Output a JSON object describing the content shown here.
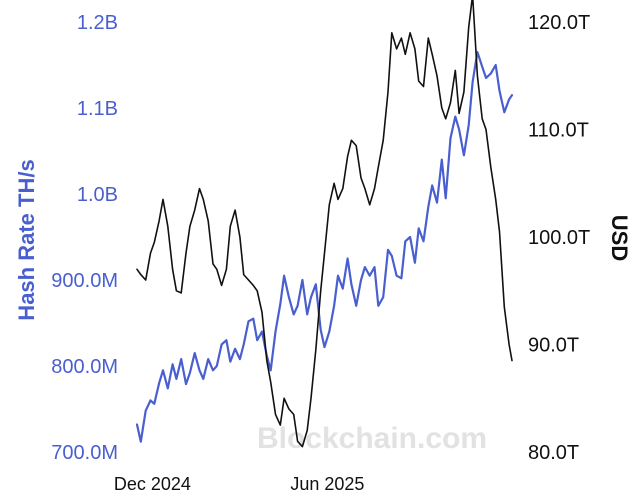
{
  "chart_data": {
    "type": "line",
    "watermark": "Blockchain.com",
    "x_ticks": [
      {
        "label": "Dec 2024",
        "date": "2024-12-01"
      },
      {
        "label": "Jun 2025",
        "date": "2025-06-01"
      }
    ],
    "y_left": {
      "label": "Hash Rate TH/s",
      "range": [
        700000000,
        1200000000
      ],
      "ticks": [
        {
          "value": 700000000,
          "label": "700.0M"
        },
        {
          "value": 800000000,
          "label": "800.0M"
        },
        {
          "value": 900000000,
          "label": "900.0M"
        },
        {
          "value": 1000000000,
          "label": "1.0B"
        },
        {
          "value": 1100000000,
          "label": "1.1B"
        },
        {
          "value": 1200000000,
          "label": "1.2B"
        }
      ]
    },
    "y_right": {
      "label": "USD",
      "range": [
        80000000000000,
        120000000000000
      ],
      "ticks": [
        {
          "value": 80000000000000,
          "label": "80.0T"
        },
        {
          "value": 90000000000000,
          "label": "90.0T"
        },
        {
          "value": 100000000000000,
          "label": "100.0T"
        },
        {
          "value": 110000000000000,
          "label": "110.0T"
        },
        {
          "value": 120000000000000,
          "label": "120.0T"
        }
      ]
    },
    "series": [
      {
        "color": "#4a5fcf",
        "axis": "left",
        "points": [
          [
            "2024-11-15",
            732000000
          ],
          [
            "2024-11-19",
            712000000
          ],
          [
            "2024-11-24",
            748000000
          ],
          [
            "2024-11-29",
            760000000
          ],
          [
            "2024-12-03",
            756000000
          ],
          [
            "2024-12-08",
            780000000
          ],
          [
            "2024-12-12",
            795000000
          ],
          [
            "2024-12-17",
            774000000
          ],
          [
            "2024-12-22",
            802000000
          ],
          [
            "2024-12-26",
            785000000
          ],
          [
            "2024-12-31",
            808000000
          ],
          [
            "2025-01-05",
            779000000
          ],
          [
            "2025-01-09",
            792000000
          ],
          [
            "2025-01-14",
            815000000
          ],
          [
            "2025-01-19",
            795000000
          ],
          [
            "2025-01-23",
            785000000
          ],
          [
            "2025-01-28",
            808000000
          ],
          [
            "2025-02-02",
            795000000
          ],
          [
            "2025-02-06",
            800000000
          ],
          [
            "2025-02-11",
            825000000
          ],
          [
            "2025-02-16",
            830000000
          ],
          [
            "2025-02-20",
            805000000
          ],
          [
            "2025-02-25",
            820000000
          ],
          [
            "2025-03-02",
            808000000
          ],
          [
            "2025-03-06",
            825000000
          ],
          [
            "2025-03-11",
            852000000
          ],
          [
            "2025-03-16",
            855000000
          ],
          [
            "2025-03-20",
            830000000
          ],
          [
            "2025-03-25",
            840000000
          ],
          [
            "2025-03-30",
            812000000
          ],
          [
            "2025-04-03",
            795000000
          ],
          [
            "2025-04-08",
            840000000
          ],
          [
            "2025-04-13",
            872000000
          ],
          [
            "2025-04-17",
            905000000
          ],
          [
            "2025-04-22",
            880000000
          ],
          [
            "2025-04-27",
            860000000
          ],
          [
            "2025-05-01",
            870000000
          ],
          [
            "2025-05-06",
            900000000
          ],
          [
            "2025-05-11",
            860000000
          ],
          [
            "2025-05-15",
            880000000
          ],
          [
            "2025-05-20",
            895000000
          ],
          [
            "2025-05-25",
            842000000
          ],
          [
            "2025-05-29",
            822000000
          ],
          [
            "2025-06-03",
            840000000
          ],
          [
            "2025-06-08",
            870000000
          ],
          [
            "2025-06-12",
            905000000
          ],
          [
            "2025-06-17",
            890000000
          ],
          [
            "2025-06-22",
            925000000
          ],
          [
            "2025-06-26",
            895000000
          ],
          [
            "2025-07-01",
            870000000
          ],
          [
            "2025-07-06",
            900000000
          ],
          [
            "2025-07-10",
            915000000
          ],
          [
            "2025-07-15",
            905000000
          ],
          [
            "2025-07-20",
            915000000
          ],
          [
            "2025-07-24",
            870000000
          ],
          [
            "2025-07-29",
            880000000
          ],
          [
            "2025-08-03",
            935000000
          ],
          [
            "2025-08-07",
            928000000
          ],
          [
            "2025-08-12",
            905000000
          ],
          [
            "2025-08-17",
            902000000
          ],
          [
            "2025-08-21",
            945000000
          ],
          [
            "2025-08-26",
            950000000
          ],
          [
            "2025-08-31",
            920000000
          ],
          [
            "2025-09-04",
            960000000
          ],
          [
            "2025-09-09",
            945000000
          ],
          [
            "2025-09-14",
            985000000
          ],
          [
            "2025-09-18",
            1010000000
          ],
          [
            "2025-09-23",
            990000000
          ],
          [
            "2025-09-28",
            1040000000
          ],
          [
            "2025-10-02",
            995000000
          ],
          [
            "2025-10-07",
            1065000000
          ],
          [
            "2025-10-12",
            1090000000
          ],
          [
            "2025-10-16",
            1075000000
          ],
          [
            "2025-10-21",
            1045000000
          ],
          [
            "2025-10-26",
            1080000000
          ],
          [
            "2025-10-30",
            1130000000
          ],
          [
            "2025-11-04",
            1165000000
          ],
          [
            "2025-11-09",
            1148000000
          ],
          [
            "2025-11-13",
            1135000000
          ],
          [
            "2025-11-18",
            1140000000
          ],
          [
            "2025-11-23",
            1150000000
          ],
          [
            "2025-11-27",
            1120000000
          ],
          [
            "2025-12-02",
            1095000000
          ],
          [
            "2025-12-07",
            1110000000
          ],
          [
            "2025-12-10",
            1115000000
          ]
        ]
      },
      {
        "color": "#111111",
        "axis": "right",
        "points": [
          [
            "2024-11-15",
            97000000000000
          ],
          [
            "2024-11-19",
            96500000000000
          ],
          [
            "2024-11-24",
            96000000000000
          ],
          [
            "2024-11-29",
            98500000000000
          ],
          [
            "2024-12-03",
            99500000000000
          ],
          [
            "2024-12-08",
            101500000000000
          ],
          [
            "2024-12-12",
            103500000000000
          ],
          [
            "2024-12-17",
            101000000000000
          ],
          [
            "2024-12-22",
            97000000000000
          ],
          [
            "2024-12-26",
            95000000000000
          ],
          [
            "2024-12-31",
            94800000000000
          ],
          [
            "2025-01-05",
            98500000000000
          ],
          [
            "2025-01-09",
            101000000000000
          ],
          [
            "2025-01-14",
            102500000000000
          ],
          [
            "2025-01-19",
            104500000000000
          ],
          [
            "2025-01-23",
            103500000000000
          ],
          [
            "2025-01-28",
            101500000000000
          ],
          [
            "2025-02-02",
            97500000000000
          ],
          [
            "2025-02-06",
            97000000000000
          ],
          [
            "2025-02-11",
            95500000000000
          ],
          [
            "2025-02-16",
            97000000000000
          ],
          [
            "2025-02-20",
            101000000000000
          ],
          [
            "2025-02-25",
            102500000000000
          ],
          [
            "2025-03-02",
            100000000000000
          ],
          [
            "2025-03-06",
            96500000000000
          ],
          [
            "2025-03-11",
            96000000000000
          ],
          [
            "2025-03-16",
            95500000000000
          ],
          [
            "2025-03-20",
            95000000000000
          ],
          [
            "2025-03-25",
            93000000000000
          ],
          [
            "2025-03-30",
            88500000000000
          ],
          [
            "2025-04-03",
            86500000000000
          ],
          [
            "2025-04-08",
            83500000000000
          ],
          [
            "2025-04-13",
            82500000000000
          ],
          [
            "2025-04-17",
            85000000000000
          ],
          [
            "2025-04-22",
            84000000000000
          ],
          [
            "2025-04-27",
            83500000000000
          ],
          [
            "2025-05-01",
            81000000000000
          ],
          [
            "2025-05-06",
            80500000000000
          ],
          [
            "2025-05-11",
            82000000000000
          ],
          [
            "2025-05-15",
            85000000000000
          ],
          [
            "2025-05-20",
            89500000000000
          ],
          [
            "2025-05-25",
            95000000000000
          ],
          [
            "2025-05-29",
            98500000000000
          ],
          [
            "2025-06-03",
            103000000000000
          ],
          [
            "2025-06-08",
            105000000000000
          ],
          [
            "2025-06-12",
            103500000000000
          ],
          [
            "2025-06-17",
            104500000000000
          ],
          [
            "2025-06-22",
            107500000000000
          ],
          [
            "2025-06-26",
            109000000000000
          ],
          [
            "2025-07-01",
            108500000000000
          ],
          [
            "2025-07-06",
            105500000000000
          ],
          [
            "2025-07-10",
            104500000000000
          ],
          [
            "2025-07-15",
            103000000000000
          ],
          [
            "2025-07-20",
            104500000000000
          ],
          [
            "2025-07-24",
            106500000000000
          ],
          [
            "2025-07-29",
            109000000000000
          ],
          [
            "2025-08-03",
            113500000000000
          ],
          [
            "2025-08-07",
            119000000000000
          ],
          [
            "2025-08-12",
            117500000000000
          ],
          [
            "2025-08-17",
            118500000000000
          ],
          [
            "2025-08-21",
            117000000000000
          ],
          [
            "2025-08-26",
            119000000000000
          ],
          [
            "2025-08-31",
            117500000000000
          ],
          [
            "2025-09-04",
            114500000000000
          ],
          [
            "2025-09-09",
            114000000000000
          ],
          [
            "2025-09-14",
            118500000000000
          ],
          [
            "2025-09-18",
            117000000000000
          ],
          [
            "2025-09-23",
            115000000000000
          ],
          [
            "2025-09-28",
            112000000000000
          ],
          [
            "2025-10-02",
            111000000000000
          ],
          [
            "2025-10-07",
            112500000000000
          ],
          [
            "2025-10-12",
            115500000000000
          ],
          [
            "2025-10-16",
            111500000000000
          ],
          [
            "2025-10-21",
            113500000000000
          ],
          [
            "2025-10-26",
            119500000000000
          ],
          [
            "2025-10-30",
            122500000000000
          ],
          [
            "2025-11-04",
            115000000000000
          ],
          [
            "2025-11-09",
            111000000000000
          ],
          [
            "2025-11-13",
            110000000000000
          ],
          [
            "2025-11-18",
            106500000000000
          ],
          [
            "2025-11-23",
            103500000000000
          ],
          [
            "2025-11-27",
            100500000000000
          ],
          [
            "2025-12-02",
            93500000000000
          ],
          [
            "2025-12-07",
            90000000000000
          ],
          [
            "2025-12-10",
            88500000000000
          ]
        ]
      }
    ]
  }
}
